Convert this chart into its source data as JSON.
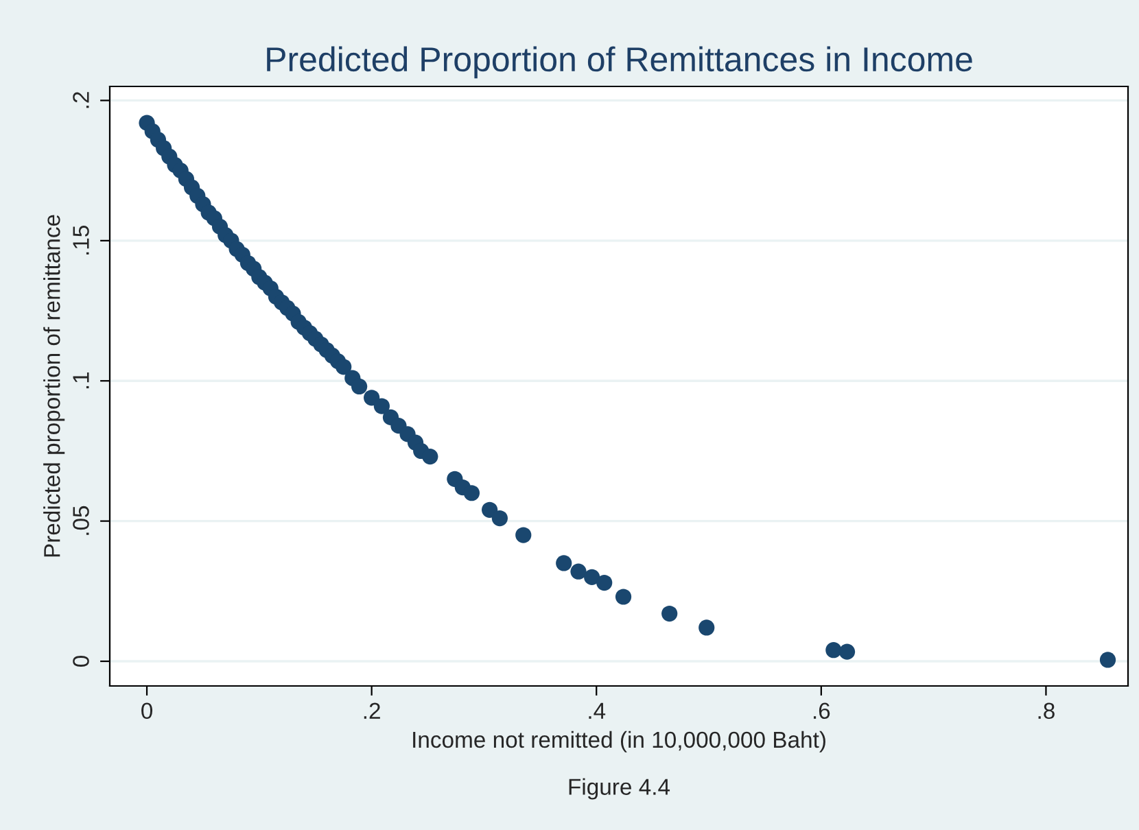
{
  "chart_data": {
    "type": "scatter",
    "title": "Predicted Proportion of Remittances in Income",
    "xlabel": "Income not remitted (in 10,000,000 Baht)",
    "ylabel": "Predicted proportion of remittance",
    "annotations": [
      "Figure 4.4"
    ],
    "x": [
      0,
      0.005,
      0.01,
      0.015,
      0.02,
      0.025,
      0.03,
      0.035,
      0.04,
      0.045,
      0.05,
      0.055,
      0.06,
      0.065,
      0.07,
      0.075,
      0.08,
      0.085,
      0.09,
      0.095,
      0.1,
      0.105,
      0.11,
      0.115,
      0.12,
      0.125,
      0.13,
      0.135,
      0.14,
      0.145,
      0.15,
      0.155,
      0.16,
      0.165,
      0.17,
      0.175,
      0.183,
      0.189,
      0.2,
      0.209,
      0.217,
      0.224,
      0.232,
      0.239,
      0.244,
      0.252,
      0.274,
      0.281,
      0.289,
      0.305,
      0.314,
      0.335,
      0.371,
      0.384,
      0.396,
      0.407,
      0.424,
      0.465,
      0.498,
      0.611,
      0.623,
      0.855
    ],
    "series": [
      {
        "color": "#1a476f",
        "values": [
          0.192,
          0.189,
          0.186,
          0.183,
          0.18,
          0.177,
          0.175,
          0.172,
          0.169,
          0.166,
          0.163,
          0.16,
          0.158,
          0.155,
          0.152,
          0.15,
          0.147,
          0.145,
          0.142,
          0.14,
          0.137,
          0.135,
          0.133,
          0.13,
          0.128,
          0.126,
          0.124,
          0.121,
          0.119,
          0.117,
          0.115,
          0.113,
          0.111,
          0.109,
          0.107,
          0.105,
          0.101,
          0.098,
          0.094,
          0.091,
          0.087,
          0.084,
          0.081,
          0.078,
          0.075,
          0.073,
          0.065,
          0.062,
          0.06,
          0.054,
          0.051,
          0.045,
          0.035,
          0.032,
          0.03,
          0.028,
          0.023,
          0.017,
          0.012,
          0.004,
          0.0034,
          0.0005
        ]
      }
    ],
    "marker": "circle",
    "xlim": [
      -0.033,
      0.873
    ],
    "ylim": [
      -0.0088,
      0.205
    ],
    "xticks": [
      0,
      {
        "value": 0.2,
        "label": ".2"
      },
      {
        "value": 0.4,
        "label": ".4"
      },
      {
        "value": 0.6,
        "label": ".6"
      },
      {
        "value": 0.8,
        "label": ".8"
      }
    ],
    "yticks": [
      0,
      {
        "value": 0.05,
        "label": ".05"
      },
      {
        "value": 0.1,
        "label": ".1"
      },
      {
        "value": 0.15,
        "label": ".15"
      },
      {
        "value": 0.2,
        "label": ".2"
      }
    ],
    "grid": "y"
  }
}
